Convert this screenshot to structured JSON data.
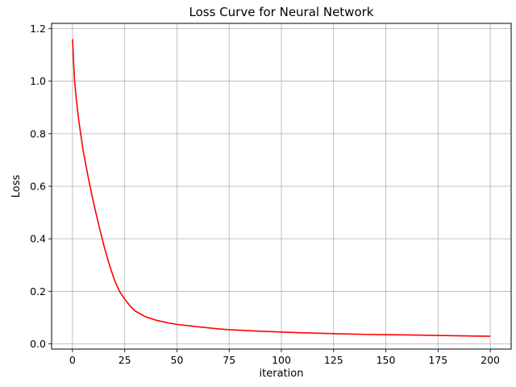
{
  "chart_data": {
    "type": "line",
    "title": "Loss Curve for Neural Network",
    "xlabel": "iteration",
    "ylabel": "Loss",
    "xlim": [
      -10,
      210
    ],
    "ylim": [
      -0.02,
      1.22
    ],
    "xticks": [
      0,
      25,
      50,
      75,
      100,
      125,
      150,
      175,
      200
    ],
    "yticks": [
      0.0,
      0.2,
      0.4,
      0.6,
      0.8,
      1.0,
      1.2
    ],
    "xtick_labels": [
      "0",
      "25",
      "50",
      "75",
      "100",
      "125",
      "150",
      "175",
      "200"
    ],
    "ytick_labels": [
      "0.0",
      "0.2",
      "0.4",
      "0.6",
      "0.8",
      "1.0",
      "1.2"
    ],
    "grid": true,
    "series": [
      {
        "color": "#ff0000",
        "x": [
          0,
          1,
          2,
          3,
          5,
          7.5,
          10,
          12.5,
          15,
          17.5,
          20,
          22.5,
          25,
          27.5,
          30,
          35,
          40,
          45,
          50,
          60,
          70,
          75,
          80,
          90,
          100,
          110,
          125,
          140,
          150,
          160,
          175,
          190,
          200
        ],
        "y": [
          1.16,
          1.0,
          0.92,
          0.85,
          0.74,
          0.635,
          0.54,
          0.455,
          0.375,
          0.305,
          0.245,
          0.2,
          0.17,
          0.145,
          0.125,
          0.103,
          0.09,
          0.081,
          0.074,
          0.065,
          0.057,
          0.054,
          0.052,
          0.048,
          0.045,
          0.042,
          0.039,
          0.036,
          0.035,
          0.034,
          0.032,
          0.03,
          0.029
        ]
      }
    ]
  }
}
